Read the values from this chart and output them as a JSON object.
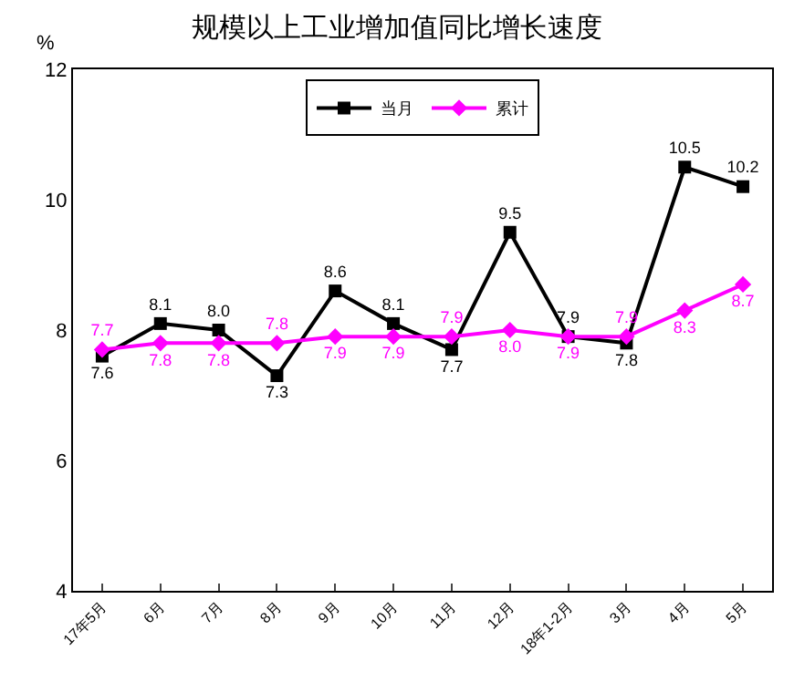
{
  "chart_data": {
    "type": "line",
    "title": "规模以上工业增加值同比增长速度",
    "ylabel": "%",
    "categories": [
      "17年5月",
      "6月",
      "7月",
      "8月",
      "9月",
      "10月",
      "11月",
      "12月",
      "18年1-2月",
      "3月",
      "4月",
      "5月"
    ],
    "series": [
      {
        "name": "当月",
        "color": "#000000",
        "marker": "square",
        "values": [
          7.6,
          8.1,
          8.0,
          7.3,
          8.6,
          8.1,
          7.7,
          9.5,
          7.9,
          7.8,
          10.5,
          10.2
        ],
        "value_labels": [
          "7.6",
          "8.1",
          "8.0",
          "7.3",
          "8.6",
          "8.1",
          "7.7",
          "9.5",
          "7.9",
          "7.8",
          "10.5",
          "10.2"
        ]
      },
      {
        "name": "累计",
        "color": "#ff00ff",
        "marker": "diamond",
        "values": [
          7.7,
          7.8,
          7.8,
          7.8,
          7.9,
          7.9,
          7.9,
          8.0,
          7.9,
          7.9,
          8.3,
          8.7
        ],
        "value_labels": [
          "7.7",
          "7.8",
          "7.8",
          "7.8",
          "7.9",
          "7.9",
          "7.9",
          "8.0",
          "7.9",
          "7.9",
          "8.3",
          "8.7"
        ]
      }
    ],
    "ylim": [
      4,
      12
    ],
    "yticks": [
      4,
      6,
      8,
      10,
      12
    ],
    "grid": false,
    "legend": "top",
    "line_style": "solid"
  }
}
